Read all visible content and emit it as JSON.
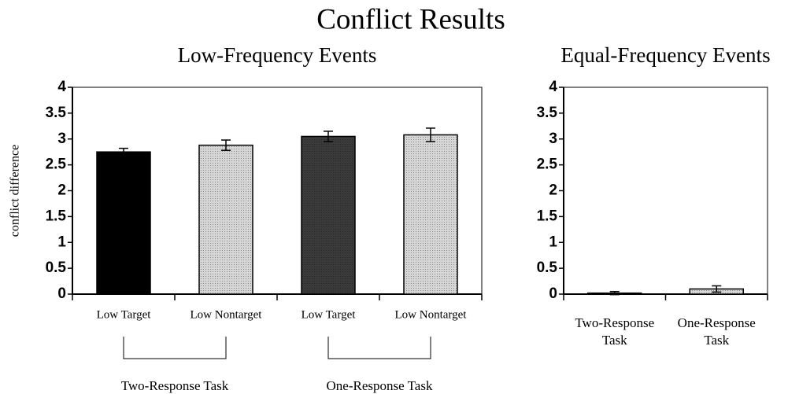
{
  "title": "Conflict Results",
  "chart_data": [
    {
      "type": "bar",
      "title": "Low-Frequency Events",
      "ylabel": "conflict difference",
      "categories": [
        "Low Target",
        "Low Nontarget",
        "Low Target",
        "Low Nontarget"
      ],
      "values": [
        2.75,
        2.88,
        3.05,
        3.08
      ],
      "errors": [
        0.07,
        0.1,
        0.1,
        0.13
      ],
      "colors": [
        "#000000",
        "#d6d6d6",
        "#3a3a3a",
        "#d6d6d6"
      ],
      "groups": [
        "Two-Response Task",
        "One-Response Task"
      ],
      "ylim": [
        0,
        4
      ],
      "yticks": [
        0,
        0.5,
        1,
        1.5,
        2,
        2.5,
        3,
        3.5,
        4
      ]
    },
    {
      "type": "bar",
      "title": "Equal-Frequency Events",
      "categories": [
        "Two-Response Task",
        "One-Response Task"
      ],
      "values": [
        0.02,
        0.1
      ],
      "errors": [
        0.03,
        0.06
      ],
      "colors": [
        "#000000",
        "#d6d6d6"
      ],
      "ylim": [
        0,
        4
      ],
      "yticks": [
        0,
        0.5,
        1,
        1.5,
        2,
        2.5,
        3,
        3.5,
        4
      ]
    }
  ]
}
